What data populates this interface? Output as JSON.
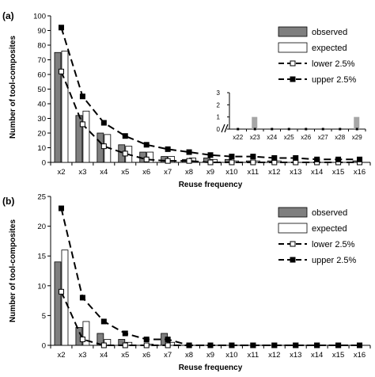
{
  "chart_data": [
    {
      "type": "bar",
      "panel_label": "(a)",
      "xlabel": "Reuse frequency",
      "ylabel": "Number of tool-composites",
      "ylim": [
        0,
        100
      ],
      "yticks": [
        0,
        10,
        20,
        30,
        40,
        50,
        60,
        70,
        80,
        90,
        100
      ],
      "categories": [
        "x2",
        "x3",
        "x4",
        "x5",
        "x6",
        "x7",
        "x8",
        "x9",
        "x10",
        "x11",
        "x12",
        "x13",
        "x14",
        "x15",
        "x16"
      ],
      "series": [
        {
          "name": "observed",
          "kind": "bar",
          "color": "#7f7f7f",
          "values": [
            75,
            32,
            20,
            12,
            7,
            4,
            2,
            3,
            2,
            1,
            1,
            0,
            0,
            0,
            1
          ]
        },
        {
          "name": "expected",
          "kind": "bar",
          "color": "#ffffff",
          "values": [
            76,
            35,
            19,
            11,
            7,
            4,
            3,
            2,
            1,
            1,
            1,
            0,
            0,
            0,
            0
          ]
        },
        {
          "name": "lower 2.5%",
          "kind": "line",
          "marker": "open-square",
          "values": [
            62,
            26,
            11,
            6,
            2,
            1,
            1,
            0,
            0,
            0,
            0,
            0,
            0,
            0,
            0
          ]
        },
        {
          "name": "upper 2.5%",
          "kind": "line",
          "marker": "filled-square",
          "values": [
            92,
            45,
            27,
            18,
            12,
            9,
            7,
            5,
            4,
            4,
            3,
            3,
            2,
            2,
            2
          ]
        }
      ],
      "legend": {
        "position": "top-right",
        "entries": [
          "observed",
          "expected",
          "lower 2.5%",
          "upper 2.5%"
        ]
      },
      "inset": {
        "categories": [
          "x22",
          "x23",
          "x24",
          "x25",
          "x26",
          "x27",
          "x28",
          "x29"
        ],
        "observed": [
          0,
          1,
          0,
          0,
          0,
          0,
          0,
          1
        ],
        "yticks": [
          0,
          1,
          2,
          3
        ],
        "ylim": [
          0,
          3
        ]
      }
    },
    {
      "type": "bar",
      "panel_label": "(b)",
      "xlabel": "Reuse frequency",
      "ylabel": "Number of tool-composites",
      "ylim": [
        0,
        25
      ],
      "yticks": [
        0,
        5,
        10,
        15,
        20,
        25
      ],
      "categories": [
        "x2",
        "x3",
        "x4",
        "x5",
        "x6",
        "x7",
        "x8",
        "x9",
        "x10",
        "x11",
        "x12",
        "x13",
        "x14",
        "x15",
        "x16"
      ],
      "series": [
        {
          "name": "observed",
          "kind": "bar",
          "color": "#7f7f7f",
          "values": [
            14,
            3,
            2,
            1,
            0,
            2,
            0,
            0,
            0,
            0,
            0,
            0,
            0,
            0,
            0
          ]
        },
        {
          "name": "expected",
          "kind": "bar",
          "color": "#ffffff",
          "values": [
            16,
            4,
            1,
            0.5,
            0.2,
            0.5,
            0,
            0,
            0,
            0,
            0,
            0,
            0,
            0,
            0
          ]
        },
        {
          "name": "lower 2.5%",
          "kind": "line",
          "marker": "open-square",
          "values": [
            9,
            1,
            0,
            0,
            0,
            0,
            0,
            0,
            0,
            0,
            0,
            0,
            0,
            0,
            0
          ]
        },
        {
          "name": "upper 2.5%",
          "kind": "line",
          "marker": "filled-square",
          "values": [
            23,
            8,
            4,
            2,
            1,
            1,
            0,
            0,
            0,
            0,
            0,
            0,
            0,
            0,
            0
          ]
        }
      ],
      "legend": {
        "position": "top-right",
        "entries": [
          "observed",
          "expected",
          "lower 2.5%",
          "upper 2.5%"
        ]
      }
    }
  ]
}
